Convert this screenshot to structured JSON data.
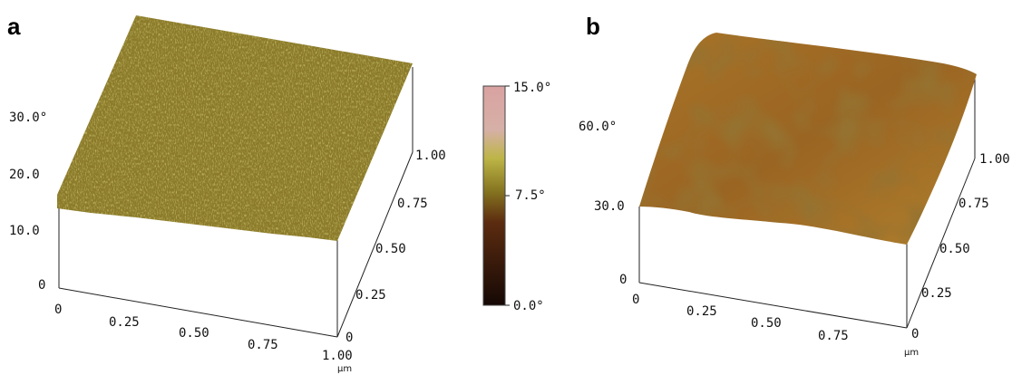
{
  "panels": [
    {
      "label": "a",
      "z_ticks": [
        "30.0°",
        "20.0",
        "10.0",
        "0"
      ],
      "x_ticks": [
        "0",
        "0.25",
        "0.50",
        "0.75",
        "1.00"
      ],
      "y_ticks": [
        "0",
        "0.25",
        "0.50",
        "0.75",
        "1.00"
      ],
      "unit": "μm"
    },
    {
      "label": "b",
      "z_ticks": [
        "60.0°",
        "30.0",
        "0"
      ],
      "x_ticks": [
        "0",
        "0.25",
        "0.50",
        "0.75"
      ],
      "y_ticks": [
        "0",
        "0.25",
        "0.50",
        "0.75",
        "1.00"
      ],
      "unit": "μm"
    }
  ],
  "colorbar": {
    "labels": [
      "15.0°",
      "7.5°",
      "0.0°"
    ]
  }
}
